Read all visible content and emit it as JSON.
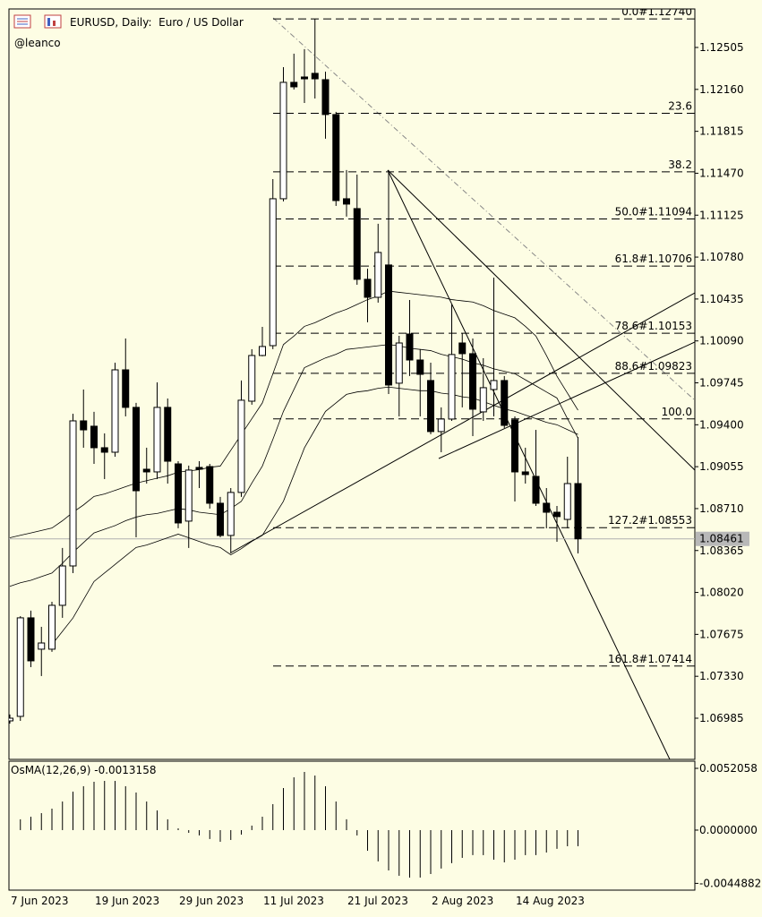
{
  "header": {
    "symbol_line": "EURUSD, Daily:  Euro / US Dollar",
    "author": "@leanco"
  },
  "chart_data": [
    {
      "type": "candlestick",
      "categories": [
        "7 Jun 2023",
        null,
        null,
        null,
        null,
        null,
        null,
        null,
        "19 Jun 2023",
        null,
        null,
        null,
        null,
        null,
        null,
        null,
        "29 Jun 2023",
        null,
        null,
        null,
        null,
        null,
        null,
        null,
        "11 Jul 2023",
        null,
        null,
        null,
        null,
        null,
        null,
        null,
        "21 Jul 2023",
        null,
        null,
        null,
        null,
        null,
        null,
        null,
        "2 Aug 2023",
        null,
        null,
        null,
        null,
        null,
        null,
        null,
        "14 Aug 2023",
        null,
        null,
        null,
        null,
        null,
        null
      ],
      "open": [
        1.06963,
        1.07,
        1.07811,
        1.07553,
        1.07553,
        1.07914,
        1.08238,
        1.09432,
        1.09388,
        1.09211,
        1.09174,
        1.09852,
        1.09543,
        1.09034,
        1.09012,
        1.09543,
        1.09078,
        1.08607,
        1.09049,
        1.09056,
        1.08754,
        1.08489,
        1.08843,
        1.09594,
        1.0997,
        1.10051,
        1.1126,
        1.12218,
        1.12262,
        1.12292,
        1.1224,
        1.11953,
        1.1126,
        1.11179,
        1.10597,
        1.10449,
        1.10715,
        1.09742,
        1.10147,
        1.09933,
        1.09764,
        1.09344,
        1.09447,
        1.10073,
        1.09985,
        1.09506,
        1.0969,
        1.09764,
        1.0944,
        1.09012,
        1.08975,
        1.08754,
        1.0868,
        1.08621,
        1.08916
      ],
      "high": [
        1.07015,
        1.07825,
        1.0787,
        1.07737,
        1.07943,
        1.08386,
        1.09491,
        1.0969,
        1.09506,
        1.09329,
        1.09911,
        1.1011,
        1.0958,
        1.09211,
        1.09749,
        1.09616,
        1.091,
        1.09064,
        1.091,
        1.09078,
        1.08806,
        1.08879,
        1.09764,
        1.10022,
        1.10206,
        1.11422,
        1.12343,
        1.12454,
        1.12491,
        1.1274,
        1.12306,
        1.11975,
        1.11496,
        1.11459,
        1.10685,
        1.11054,
        1.11496,
        1.10132,
        1.10427,
        1.10022,
        1.09911,
        1.09543,
        1.1039,
        1.10154,
        1.1011,
        1.09948,
        1.10611,
        1.09801,
        1.09469,
        1.09211,
        1.09358,
        1.08879,
        1.08732,
        1.09137,
        1.09299
      ],
      "low": [
        1.06941,
        1.06963,
        1.07405,
        1.07332,
        1.07531,
        1.07811,
        1.08179,
        1.09211,
        1.09078,
        1.08953,
        1.09137,
        1.09469,
        1.08474,
        1.08916,
        1.08953,
        1.08916,
        1.08548,
        1.08386,
        1.08879,
        1.0871,
        1.08474,
        1.08341,
        1.08806,
        1.09565,
        1.09963,
        1.10022,
        1.11238,
        1.12159,
        1.12048,
        1.12085,
        1.11754,
        1.11201,
        1.11113,
        1.10552,
        1.10243,
        1.10405,
        1.09653,
        1.09469,
        1.09801,
        1.09469,
        1.09322,
        1.09174,
        1.09432,
        1.09543,
        1.09307,
        1.09432,
        1.09469,
        1.09373,
        1.08769,
        1.08916,
        1.08732,
        1.08548,
        1.08437,
        1.08548,
        1.08341
      ],
      "close": [
        1.06985,
        1.07811,
        1.07457,
        1.07604,
        1.07914,
        1.08238,
        1.09432,
        1.09358,
        1.09211,
        1.09174,
        1.09852,
        1.09543,
        1.08857,
        1.09012,
        1.09543,
        1.091,
        1.08592,
        1.09027,
        1.09034,
        1.08754,
        1.08489,
        1.08843,
        1.09602,
        1.0997,
        1.10044,
        1.1126,
        1.12218,
        1.12181,
        1.12247,
        1.12247,
        1.11953,
        1.11245,
        1.11216,
        1.10597,
        1.10449,
        1.10818,
        1.09727,
        1.10073,
        1.09933,
        1.09815,
        1.09344,
        1.09447,
        1.09978,
        1.09985,
        1.09528,
        1.09705,
        1.09764,
        1.09395,
        1.09012,
        1.0899,
        1.08754,
        1.0868,
        1.08644,
        1.08916,
        1.08461
      ],
      "up_color": "#ffffff",
      "down_color": "#000000",
      "overlays": [
        {
          "color": "#000000",
          "values": [
            1.0847,
            1.0849,
            1.0851,
            1.0853,
            1.0855,
            1.0861,
            1.0868,
            1.0874,
            1.0881,
            1.0883,
            1.0886,
            1.0889,
            1.0892,
            1.0894,
            1.0896,
            1.0898,
            1.0901,
            1.0902,
            1.0903,
            1.0905,
            1.0906,
            1.0919,
            1.0932,
            1.0945,
            1.0958,
            1.0982,
            1.1006,
            1.1013,
            1.1021,
            1.1024,
            1.1028,
            1.1032,
            1.1035,
            1.1039,
            1.1043,
            1.1046,
            1.105,
            1.1049,
            1.1048,
            1.1047,
            1.1046,
            1.1045,
            1.1043,
            1.1042,
            1.1041,
            1.1038,
            1.1034,
            1.1031,
            1.1028,
            1.1021,
            1.1013,
            1.0997,
            1.098,
            1.0966,
            1.0952
          ]
        },
        {
          "color": "#000000",
          "values": [
            1.0807,
            1.081,
            1.0812,
            1.0815,
            1.0818,
            1.0826,
            1.0835,
            1.0843,
            1.0851,
            1.0854,
            1.0857,
            1.0861,
            1.0864,
            1.0866,
            1.0867,
            1.0869,
            1.0871,
            1.087,
            1.0868,
            1.0867,
            1.0866,
            1.0871,
            1.0877,
            1.0892,
            1.0906,
            1.0928,
            1.0951,
            1.0969,
            1.0987,
            1.0991,
            1.0995,
            1.0998,
            1.1002,
            1.1003,
            1.1004,
            1.1005,
            1.1006,
            1.1005,
            1.1003,
            1.1002,
            1.1001,
            1.0998,
            1.0996,
            1.0994,
            1.0991,
            1.0989,
            1.0986,
            1.0984,
            1.0982,
            1.0977,
            1.0972,
            1.0967,
            1.0962,
            1.0945,
            1.0929
          ]
        },
        {
          "color": "#000000",
          "values": [
            null,
            null,
            null,
            null,
            1.0759,
            1.077,
            1.0781,
            1.0796,
            1.0811,
            1.0818,
            1.0825,
            1.0832,
            1.0839,
            1.0841,
            1.0844,
            1.0847,
            1.085,
            1.0847,
            1.0844,
            1.0841,
            1.0839,
            1.0833,
            1.0838,
            1.0844,
            1.0849,
            1.0863,
            1.0877,
            1.0899,
            1.0921,
            1.0936,
            1.0951,
            1.0958,
            1.0965,
            1.0967,
            1.0968,
            1.097,
            1.0971,
            1.097,
            1.0969,
            1.0968,
            1.0968,
            1.0966,
            1.0965,
            1.0963,
            1.0962,
            1.0959,
            1.0956,
            1.0953,
            1.0951,
            1.0948,
            1.0945,
            1.0942,
            1.094,
            1.0936,
            1.0932
          ]
        }
      ],
      "fib_levels": [
        {
          "label": "0.0#1.12740",
          "value": 1.1274
        },
        {
          "label": "23.6",
          "value": 1.11963
        },
        {
          "label": "38.2",
          "value": 1.11482
        },
        {
          "label": "50.0#1.11094",
          "value": 1.11094
        },
        {
          "label": "61.8#1.10706",
          "value": 1.10706
        },
        {
          "label": "78.6#1.10153",
          "value": 1.10153
        },
        {
          "label": "88.6#1.09823",
          "value": 1.09823
        },
        {
          "label": "100.0",
          "value": 1.09448
        },
        {
          "label": "127.2#1.08553",
          "value": 1.08553
        },
        {
          "label": "161.8#1.07414",
          "value": 1.07414
        }
      ],
      "current_price": 1.08461,
      "ylim": [
        1.06646,
        1.12822
      ],
      "yticks": [
        1.12505,
        {
          "value": 1.1216,
          "label": "1.12160"
        },
        1.11815,
        {
          "value": 1.1147,
          "label": "1.11470"
        },
        1.11125,
        {
          "value": 1.1078,
          "label": "1.10780"
        },
        1.10435,
        {
          "value": 1.1009,
          "label": "1.10090"
        },
        1.09745,
        {
          "value": 1.094,
          "label": "1.09400"
        },
        1.09055,
        {
          "value": 1.0871,
          "label": "1.08710"
        },
        1.08365,
        {
          "value": 1.0802,
          "label": "1.08020"
        },
        1.07675,
        {
          "value": 1.0733,
          "label": "1.07330"
        },
        1.06985
      ]
    },
    {
      "type": "histogram",
      "title": "OsMA(12,26,9) -0.0013158",
      "color": "#000000",
      "values": [
        null,
        0.00091,
        0.00113,
        0.00143,
        0.00181,
        0.00241,
        0.00324,
        0.0037,
        0.00407,
        0.00415,
        0.00415,
        0.0037,
        0.00317,
        0.00241,
        0.00166,
        0.00091,
        0.00015,
        -0.00023,
        -0.00045,
        -0.00075,
        -0.00098,
        -0.00083,
        -0.00038,
        0.00038,
        0.00113,
        0.00219,
        0.00355,
        0.00445,
        0.0049,
        0.0046,
        0.0037,
        0.00241,
        0.00091,
        -0.00045,
        -0.00174,
        -0.00264,
        -0.0034,
        -0.00385,
        -0.004,
        -0.004,
        -0.0037,
        -0.00324,
        -0.00279,
        -0.00234,
        -0.00211,
        -0.00211,
        -0.00249,
        -0.00272,
        -0.00249,
        -0.00211,
        -0.00211,
        -0.00189,
        -0.00158,
        -0.00136,
        -0.00136
      ],
      "ylim": [
        -0.00506,
        0.00581
      ],
      "yticks": [
        0.0052058,
        {
          "value": 0,
          "label": "0.0000000"
        },
        -0.0044882
      ]
    }
  ]
}
